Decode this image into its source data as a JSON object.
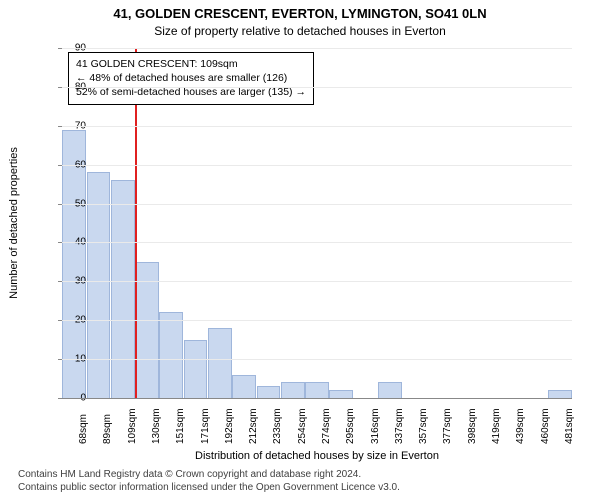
{
  "title_main": "41, GOLDEN CRESCENT, EVERTON, LYMINGTON, SO41 0LN",
  "title_sub": "Size of property relative to detached houses in Everton",
  "y_label": "Number of detached properties",
  "x_label": "Distribution of detached houses by size in Everton",
  "footer_line1": "Contains HM Land Registry data © Crown copyright and database right 2024.",
  "footer_line2": "Contains public sector information licensed under the Open Government Licence v3.0.",
  "annotation": {
    "line1": "41 GOLDEN CRESCENT: 109sqm",
    "line2": "← 48% of detached houses are smaller (126)",
    "line3": "52% of semi-detached houses are larger (135) →"
  },
  "chart": {
    "type": "histogram",
    "ylim": [
      0,
      90
    ],
    "ytick_step": 10,
    "categories": [
      "68sqm",
      "89sqm",
      "109sqm",
      "130sqm",
      "151sqm",
      "171sqm",
      "192sqm",
      "212sqm",
      "233sqm",
      "254sqm",
      "274sqm",
      "295sqm",
      "316sqm",
      "337sqm",
      "357sqm",
      "377sqm",
      "398sqm",
      "419sqm",
      "439sqm",
      "460sqm",
      "481sqm"
    ],
    "values": [
      69,
      58,
      56,
      35,
      22,
      15,
      18,
      6,
      3,
      4,
      4,
      2,
      0,
      4,
      0,
      0,
      0,
      0,
      0,
      0,
      2
    ],
    "bar_color": "#c9d8ef",
    "bar_border": "#9fb6db",
    "marker_color": "#e02020",
    "marker_x_value": "109sqm",
    "background_color": "#ffffff",
    "grid_color": "#eaeaea",
    "axis_font_size": 10,
    "label_font_size": 11,
    "title_font_size": 13
  }
}
